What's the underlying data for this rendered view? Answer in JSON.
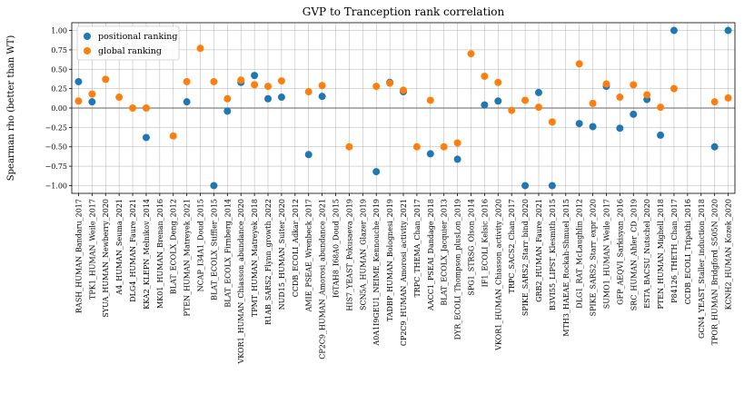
{
  "chart_data": {
    "type": "scatter",
    "title": "GVP to Tranception rank correlation",
    "xlabel": "",
    "ylabel": "Spearman rho (better than WT)",
    "ylim": [
      -1.1,
      1.1
    ],
    "yticks": [
      -1.0,
      -0.75,
      -0.5,
      -0.25,
      0.0,
      0.25,
      0.5,
      0.75,
      1.0
    ],
    "ytick_labels": [
      "−1.00",
      "−0.75",
      "−0.50",
      "−0.25",
      "0.00",
      "0.25",
      "0.50",
      "0.75",
      "1.00"
    ],
    "grid": true,
    "legend_position": "top-left",
    "colors": {
      "positional": "#1f77b4",
      "global": "#ff7f0e",
      "zero_line": "#808080",
      "grid": "#b0b0b0"
    },
    "categories": [
      "RASH_HUMAN_Bandaru_2017",
      "TPK1_HUMAN_Weile_2017",
      "SYUA_HUMAN_Newberry_2020",
      "A4_HUMAN_Seuma_2021",
      "DLG4_HUMAN_Faure_2021",
      "KKA2_KLEPN_Melnikov_2014",
      "MK01_HUMAN_Brenan_2016",
      "BLAT_ECOLX_Deng_2012",
      "PTEN_HUMAN_Matreyek_2021",
      "NCAP_I34A1_Doud_2015",
      "BLAT_ECOLX_Stiffler_2015",
      "BLAT_ECOLX_Firnberg_2014",
      "VKOR1_HUMAN_Chiasson_abundance_2020",
      "TPMT_HUMAN_Matreyek_2018",
      "R1AB_SARS2_Flynn_growth_2022",
      "NUD15_HUMAN_Suiter_2020",
      "CCDB_ECOLI_Adkar_2012",
      "AMIE_PSEAE_Wrenbeck_2017",
      "CP2C9_HUMAN_Amorosi_abundance_2021",
      "I6TAH8_I68A0_Doud_2015",
      "HIS7_YEAST_Pokusaeva_2019",
      "SCN5A_HUMAN_Glazer_2019",
      "A0A1I9GEU1_NEIME_Kennouche_2019",
      "TADBP_HUMAN_Bolognesi_2019",
      "CP2C9_HUMAN_Amorosi_activity_2021",
      "TRPC_THEMA_Chan_2017",
      "AACC1_PSEAI_Dandage_2018",
      "BLAT_ECOLX_Jacquier_2013",
      "DYR_ECOLI_Thompson_plusLon_2019",
      "SPG1_STRSG_Olson_2014",
      "IF1_ECOLI_Kelsic_2016",
      "VKOR1_HUMAN_Chiasson_activity_2020",
      "TRPC_SACS2_Chan_2017",
      "SPIKE_SARS2_Starr_bind_2020",
      "GRB2_HUMAN_Faure_2021",
      "B3VI55_LIPST_Klesmith_2015",
      "MTH3_HAEAE_Rockah-Shmuel_2015",
      "DLG1_RAT_McLaughlin_2012",
      "SPIKE_SARS2_Starr_expr_2020",
      "SUMO1_HUMAN_Weile_2017",
      "GFP_AEQVI_Sarkisyan_2016",
      "SRC_HUMAN_Ahler_CD_2019",
      "ESTA_BACSU_Nutschel_2020",
      "PTEN_HUMAN_Mighell_2018",
      "P84126_THETH_Chan_2017",
      "CCDB_ECOLI_Tripathi_2016",
      "GCN4_YEAST_Staller_induction_2018",
      "TPOR_HUMAN_Bridgford_S505N_2020",
      "KCNH2_HUMAN_Kozek_2020"
    ],
    "series": [
      {
        "name": "positional ranking",
        "values": [
          0.34,
          0.08,
          null,
          null,
          null,
          -0.38,
          null,
          null,
          0.08,
          null,
          -1.0,
          -0.04,
          0.33,
          0.42,
          0.12,
          0.14,
          null,
          -0.6,
          0.15,
          null,
          null,
          null,
          -0.82,
          0.33,
          0.21,
          null,
          -0.59,
          null,
          -0.66,
          null,
          0.04,
          0.09,
          null,
          -1.0,
          0.2,
          -1.0,
          null,
          -0.2,
          -0.24,
          0.28,
          -0.26,
          -0.08,
          0.11,
          -0.35,
          1.0,
          null,
          null,
          -0.5,
          1.0
        ]
      },
      {
        "name": "global ranking",
        "values": [
          0.09,
          0.18,
          0.37,
          0.14,
          0.0,
          0.0,
          null,
          -0.36,
          0.34,
          0.77,
          0.34,
          0.12,
          0.36,
          0.3,
          0.28,
          0.35,
          null,
          0.21,
          0.29,
          null,
          -0.5,
          null,
          0.28,
          0.32,
          0.23,
          -0.5,
          0.1,
          -0.5,
          -0.45,
          0.7,
          0.41,
          0.33,
          -0.03,
          0.1,
          0.01,
          -0.18,
          null,
          0.57,
          0.06,
          0.31,
          0.14,
          0.3,
          0.17,
          0.01,
          0.25,
          null,
          null,
          0.08,
          0.13
        ]
      }
    ]
  }
}
